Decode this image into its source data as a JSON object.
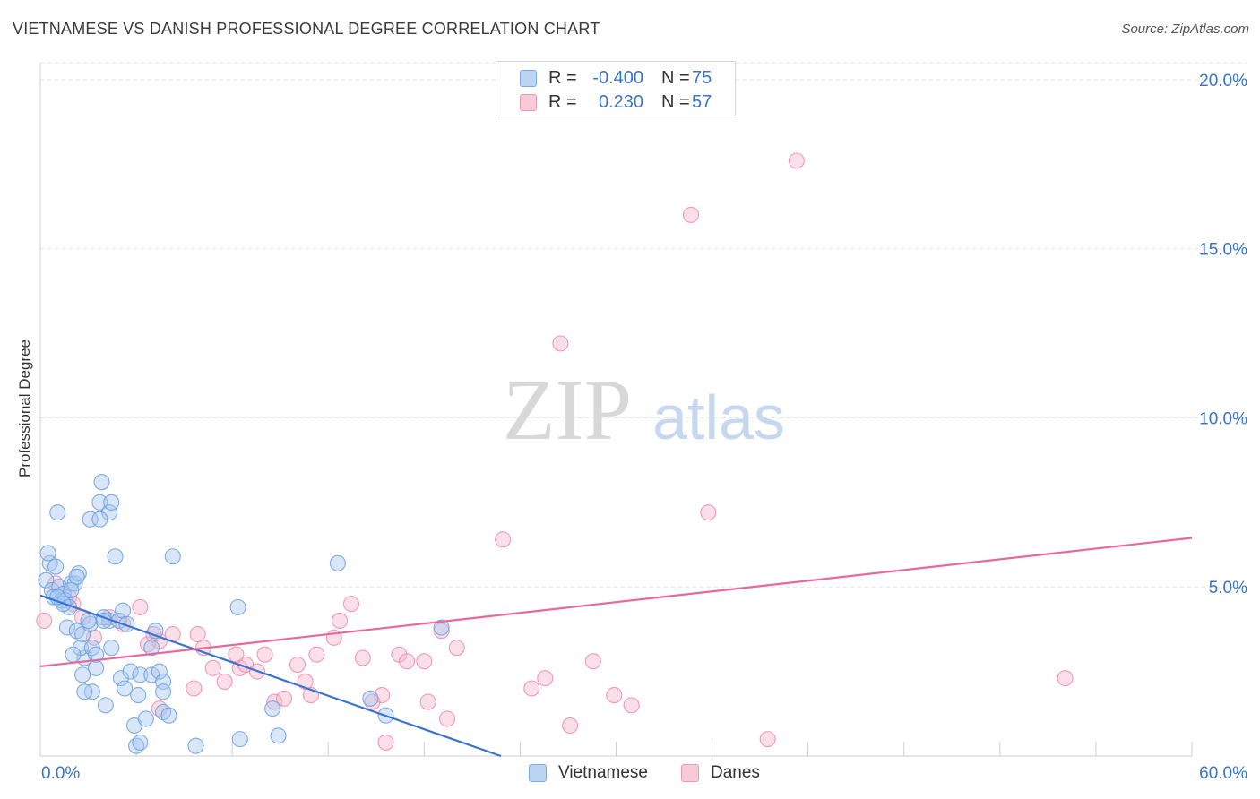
{
  "header": {
    "title": "VIETNAMESE VS DANISH PROFESSIONAL DEGREE CORRELATION CHART",
    "source": "Source: ZipAtlas.com"
  },
  "watermark": {
    "zip": "ZIP",
    "atlas": "atlas"
  },
  "legend_top": {
    "rows": [
      {
        "r_label": "R =",
        "r_value": "-0.400",
        "n_label": "N =",
        "n_value": "75",
        "color": "#a8c8f0"
      },
      {
        "r_label": "R =",
        "r_value": "0.230",
        "n_label": "N =",
        "n_value": "57",
        "color": "#f5b8cb"
      }
    ]
  },
  "legend_bottom": {
    "items": [
      "Vietnamese",
      "Danes"
    ]
  },
  "chart_data": {
    "type": "scatter",
    "title": "VIETNAMESE VS DANISH PROFESSIONAL DEGREE CORRELATION CHART",
    "xlabel": "",
    "ylabel": "Professional Degree",
    "xlim": [
      0,
      60
    ],
    "ylim": [
      0,
      20.5
    ],
    "x_tick_labels": [
      "0.0%",
      "60.0%"
    ],
    "y_ticks": [
      5,
      10,
      15,
      20
    ],
    "y_tick_labels": [
      "5.0%",
      "10.0%",
      "15.0%",
      "20.0%"
    ],
    "grid": true,
    "legend": "top-center",
    "series": [
      {
        "name": "Vietnamese",
        "color": "#6a9fe0",
        "fill": "#a8c8f0",
        "trend_color": "#3a74d0",
        "trendline": {
          "x": [
            0,
            24
          ],
          "y": [
            4.75,
            0.0
          ]
        },
        "points": [
          [
            0.3,
            5.2
          ],
          [
            0.5,
            5.7
          ],
          [
            0.4,
            6.0
          ],
          [
            0.8,
            5.6
          ],
          [
            0.6,
            4.9
          ],
          [
            0.7,
            4.7
          ],
          [
            1.0,
            5.0
          ],
          [
            1.1,
            4.6
          ],
          [
            1.2,
            4.8
          ],
          [
            1.3,
            4.6
          ],
          [
            0.9,
            7.2
          ],
          [
            1.6,
            5.1
          ],
          [
            1.8,
            5.1
          ],
          [
            1.5,
            4.4
          ],
          [
            2.0,
            5.4
          ],
          [
            1.9,
            5.3
          ],
          [
            1.4,
            3.8
          ],
          [
            1.9,
            3.7
          ],
          [
            2.2,
            3.6
          ],
          [
            2.6,
            3.9
          ],
          [
            2.5,
            4.0
          ],
          [
            2.3,
            2.9
          ],
          [
            2.6,
            7.0
          ],
          [
            3.1,
            7.5
          ],
          [
            3.2,
            8.1
          ],
          [
            3.6,
            7.2
          ],
          [
            3.1,
            7.0
          ],
          [
            3.7,
            7.5
          ],
          [
            3.9,
            5.9
          ],
          [
            3.6,
            4.0
          ],
          [
            4.1,
            4.0
          ],
          [
            4.3,
            4.3
          ],
          [
            3.3,
            4.1
          ],
          [
            2.1,
            3.2
          ],
          [
            1.7,
            3.0
          ],
          [
            2.7,
            3.2
          ],
          [
            3.7,
            3.2
          ],
          [
            2.9,
            2.6
          ],
          [
            2.2,
            2.4
          ],
          [
            4.2,
            2.3
          ],
          [
            4.7,
            2.5
          ],
          [
            5.2,
            2.4
          ],
          [
            5.8,
            2.4
          ],
          [
            6.2,
            2.5
          ],
          [
            6.4,
            2.2
          ],
          [
            4.4,
            2.0
          ],
          [
            5.1,
            1.8
          ],
          [
            6.4,
            1.9
          ],
          [
            2.7,
            1.9
          ],
          [
            2.3,
            1.9
          ],
          [
            3.4,
            1.5
          ],
          [
            4.9,
            0.9
          ],
          [
            5.5,
            1.1
          ],
          [
            6.4,
            1.3
          ],
          [
            6.7,
            1.2
          ],
          [
            5.0,
            0.3
          ],
          [
            5.2,
            0.4
          ],
          [
            8.1,
            0.3
          ],
          [
            10.4,
            0.5
          ],
          [
            12.4,
            0.6
          ],
          [
            5.8,
            3.2
          ],
          [
            6.0,
            3.7
          ],
          [
            10.3,
            4.4
          ],
          [
            6.9,
            5.9
          ],
          [
            15.5,
            5.7
          ],
          [
            12.1,
            1.4
          ],
          [
            17.2,
            1.7
          ],
          [
            20.9,
            3.8
          ],
          [
            18.0,
            1.2
          ],
          [
            1.2,
            4.5
          ],
          [
            1.6,
            4.9
          ],
          [
            0.9,
            4.7
          ],
          [
            2.9,
            3.0
          ],
          [
            3.3,
            4.0
          ],
          [
            4.5,
            3.9
          ]
        ]
      },
      {
        "name": "Danes",
        "color": "#f08aaa",
        "fill": "#f5b8cb",
        "trend_color": "#e8689a",
        "trendline": {
          "x": [
            0,
            60
          ],
          "y": [
            2.65,
            6.45
          ]
        },
        "points": [
          [
            0.2,
            4.0
          ],
          [
            0.8,
            5.1
          ],
          [
            1.5,
            4.7
          ],
          [
            1.7,
            4.5
          ],
          [
            2.2,
            4.1
          ],
          [
            2.8,
            3.5
          ],
          [
            3.6,
            4.1
          ],
          [
            4.3,
            3.9
          ],
          [
            5.2,
            4.4
          ],
          [
            5.6,
            3.3
          ],
          [
            5.9,
            3.6
          ],
          [
            6.2,
            3.4
          ],
          [
            6.9,
            3.6
          ],
          [
            8.2,
            3.6
          ],
          [
            8.5,
            3.2
          ],
          [
            9.0,
            2.6
          ],
          [
            9.6,
            2.2
          ],
          [
            10.4,
            2.6
          ],
          [
            10.7,
            2.7
          ],
          [
            11.3,
            2.5
          ],
          [
            11.7,
            3.0
          ],
          [
            12.2,
            1.6
          ],
          [
            12.7,
            1.7
          ],
          [
            13.4,
            2.7
          ],
          [
            13.8,
            2.2
          ],
          [
            14.4,
            3.0
          ],
          [
            15.3,
            3.5
          ],
          [
            15.6,
            4.0
          ],
          [
            16.2,
            4.5
          ],
          [
            16.8,
            2.9
          ],
          [
            17.3,
            1.6
          ],
          [
            17.8,
            1.8
          ],
          [
            18.0,
            0.4
          ],
          [
            18.7,
            3.0
          ],
          [
            19.1,
            2.8
          ],
          [
            20.0,
            2.8
          ],
          [
            20.2,
            1.6
          ],
          [
            20.9,
            3.7
          ],
          [
            21.2,
            1.1
          ],
          [
            21.7,
            3.2
          ],
          [
            24.1,
            6.4
          ],
          [
            25.6,
            2.0
          ],
          [
            26.3,
            2.3
          ],
          [
            27.1,
            12.2
          ],
          [
            27.6,
            0.9
          ],
          [
            28.8,
            2.8
          ],
          [
            29.9,
            1.8
          ],
          [
            30.8,
            1.5
          ],
          [
            33.9,
            16.0
          ],
          [
            34.8,
            7.2
          ],
          [
            37.9,
            0.5
          ],
          [
            39.4,
            17.6
          ],
          [
            53.4,
            2.3
          ],
          [
            14.1,
            1.8
          ],
          [
            10.2,
            3.0
          ],
          [
            6.2,
            1.4
          ],
          [
            8.0,
            2.0
          ]
        ]
      }
    ]
  }
}
